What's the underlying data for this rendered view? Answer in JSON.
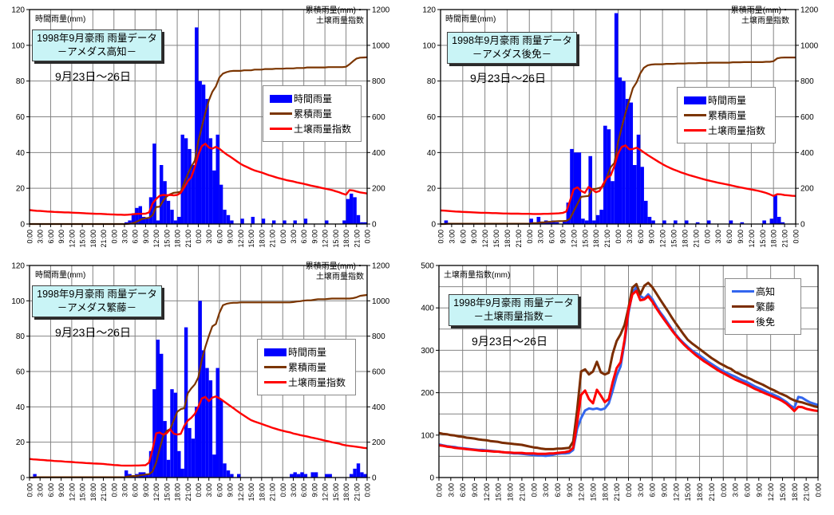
{
  "x_labels": [
    "0:00",
    "3:00",
    "6:00",
    "9:00",
    "12:00",
    "15:00",
    "18:00",
    "21:00",
    "0:00",
    "3:00",
    "6:00",
    "9:00",
    "12:00",
    "15:00",
    "18:00",
    "21:00",
    "0:00",
    "3:00",
    "6:00",
    "9:00",
    "12:00",
    "15:00",
    "18:00",
    "21:00",
    "0:00",
    "3:00",
    "6:00",
    "9:00",
    "12:00",
    "15:00",
    "18:00",
    "21:00",
    "0:00"
  ],
  "colors": {
    "bar": "#0000ff",
    "cumulative": "#7b3500",
    "soil": "#ff0000",
    "grid": "#848484",
    "border": "#000000",
    "kochi_line": "#3366ee",
    "shigeto_line": "#7b2d00",
    "gomen_line": "#ff0000",
    "title_box_bg": "#c9f4f6"
  },
  "soil_index_mm": {
    "高知": [
      78,
      76,
      74,
      73,
      72,
      70,
      69,
      68,
      67,
      66,
      65,
      65,
      64,
      63,
      62,
      61,
      60,
      59,
      58,
      57,
      57,
      56,
      55,
      54,
      53,
      52,
      52,
      51,
      52,
      54,
      56,
      57,
      57,
      58,
      65,
      115,
      140,
      158,
      163,
      161,
      163,
      160,
      163,
      175,
      205,
      240,
      262,
      318,
      388,
      436,
      449,
      428,
      422,
      432,
      421,
      405,
      390,
      378,
      364,
      350,
      337,
      326,
      317,
      308,
      300,
      294,
      288,
      281,
      274,
      268,
      262,
      256,
      251,
      246,
      242,
      238,
      233,
      229,
      225,
      220,
      215,
      211,
      207,
      202,
      198,
      194,
      190,
      184,
      178,
      170,
      164,
      190,
      188,
      182,
      177,
      174,
      171
    ],
    "後免": [
      76,
      75,
      73,
      72,
      70,
      69,
      68,
      67,
      66,
      65,
      64,
      63,
      63,
      62,
      61,
      61,
      60,
      59,
      59,
      58,
      58,
      58,
      57,
      57,
      57,
      56,
      56,
      56,
      57,
      57,
      58,
      59,
      60,
      62,
      70,
      130,
      195,
      205,
      185,
      175,
      207,
      193,
      178,
      185,
      225,
      258,
      272,
      325,
      395,
      432,
      440,
      418,
      420,
      427,
      415,
      400,
      386,
      373,
      360,
      347,
      335,
      324,
      314,
      305,
      297,
      289,
      282,
      275,
      269,
      263,
      257,
      251,
      246,
      241,
      236,
      231,
      227,
      223,
      219,
      214,
      209,
      205,
      201,
      197,
      193,
      189,
      185,
      180,
      174,
      166,
      157,
      167,
      166,
      162,
      160,
      158,
      157
    ],
    "繁藤": [
      105,
      103,
      102,
      100,
      99,
      97,
      96,
      94,
      93,
      92,
      90,
      89,
      88,
      86,
      85,
      84,
      82,
      81,
      80,
      79,
      78,
      77,
      75,
      73,
      71,
      70,
      68,
      67,
      67,
      67,
      68,
      68,
      69,
      70,
      85,
      160,
      250,
      255,
      243,
      250,
      273,
      248,
      243,
      247,
      292,
      322,
      338,
      360,
      400,
      448,
      456,
      432,
      452,
      459,
      449,
      435,
      420,
      406,
      392,
      377,
      363,
      350,
      337,
      325,
      317,
      310,
      303,
      296,
      289,
      282,
      276,
      270,
      265,
      260,
      256,
      249,
      245,
      240,
      236,
      232,
      227,
      223,
      219,
      214,
      209,
      205,
      200,
      196,
      192,
      186,
      182,
      179,
      177,
      174,
      171,
      168,
      166
    ]
  },
  "chart_data": [
    {
      "type": "combo",
      "station": "高知",
      "title_line1": "1998年9月豪雨 雨量データ",
      "title_line2": "－アメダス高知－",
      "subtitle": "9月23日〜26日",
      "left_axis_title": "時間雨量(mm)",
      "right_axis_title_line1": "累積雨量(mm)・",
      "right_axis_title_line2": "土壌雨量指数",
      "legend": [
        "時間雨量",
        "累積雨量",
        "土壌雨量指数"
      ],
      "axes": {
        "left": {
          "min": 0,
          "max": 120,
          "tick": 20
        },
        "right": {
          "min": 0,
          "max": 1200,
          "tick": 200
        }
      },
      "hourly_rain_mm": [
        0,
        0,
        0,
        0,
        0,
        0,
        0,
        0,
        0,
        0,
        0,
        0,
        0,
        0,
        0,
        0,
        0,
        0,
        0,
        0,
        0,
        0,
        0,
        0,
        0,
        0,
        0,
        1,
        2,
        6,
        9,
        10,
        4,
        3,
        15,
        45,
        2,
        33,
        24,
        13,
        8,
        2,
        4,
        50,
        48,
        42,
        33,
        110,
        80,
        78,
        70,
        48,
        30,
        50,
        22,
        8,
        5,
        2,
        0,
        0,
        3,
        0,
        0,
        4,
        0,
        0,
        3,
        0,
        0,
        2,
        0,
        0,
        2,
        0,
        0,
        2,
        0,
        0,
        3,
        0,
        0,
        0,
        0,
        0,
        2,
        0,
        0,
        0,
        0,
        2,
        14,
        17,
        15,
        5,
        1,
        1
      ]
    },
    {
      "type": "combo",
      "station": "後免",
      "title_line1": "1998年9月豪雨 雨量データ",
      "title_line2": "－アメダス後免－",
      "subtitle": "9月23日〜26日",
      "left_axis_title": "時間雨量(mm)",
      "right_axis_title_line1": "累積雨量(mm)・",
      "right_axis_title_line2": "土壌雨量指数",
      "legend": [
        "時間雨量",
        "累積雨量",
        "土壌雨量指数"
      ],
      "axes": {
        "left": {
          "min": 0,
          "max": 120,
          "tick": 20
        },
        "right": {
          "min": 0,
          "max": 1200,
          "tick": 200
        }
      },
      "hourly_rain_mm": [
        0,
        2,
        0,
        0,
        0,
        0,
        0,
        0,
        0,
        0,
        0,
        0,
        0,
        0,
        0,
        0,
        0,
        0,
        0,
        0,
        0,
        0,
        0,
        0,
        3,
        0,
        4,
        1,
        2,
        1,
        2,
        1,
        0,
        2,
        12,
        42,
        40,
        40,
        3,
        2,
        38,
        2,
        5,
        8,
        55,
        53,
        24,
        118,
        82,
        80,
        70,
        68,
        33,
        50,
        32,
        13,
        4,
        2,
        0,
        0,
        2,
        0,
        0,
        2,
        0,
        0,
        2,
        0,
        0,
        1,
        0,
        0,
        2,
        0,
        0,
        0,
        0,
        0,
        2,
        0,
        0,
        1,
        0,
        0,
        0,
        0,
        0,
        2,
        0,
        3,
        16,
        4,
        1,
        0,
        0,
        0
      ]
    },
    {
      "type": "combo",
      "station": "繁藤",
      "title_line1": "1998年9月豪雨 雨量データ",
      "title_line2": "－アメダス繁藤－",
      "subtitle": "9月23日〜26日",
      "left_axis_title": "時間雨量(mm)",
      "right_axis_title_line1": "累積雨量(mm)・",
      "right_axis_title_line2": "土壌雨量指数",
      "legend": [
        "時間雨量",
        "累積雨量",
        "土壌雨量指数"
      ],
      "axes": {
        "left": {
          "min": 0,
          "max": 120,
          "tick": 20
        },
        "right": {
          "min": 0,
          "max": 1200,
          "tick": 200
        }
      },
      "hourly_rain_mm": [
        0,
        2,
        0,
        0,
        0,
        0,
        0,
        0,
        0,
        0,
        0,
        0,
        0,
        0,
        0,
        0,
        0,
        0,
        0,
        0,
        0,
        0,
        0,
        0,
        0,
        0,
        0,
        4,
        2,
        1,
        2,
        3,
        3,
        2,
        15,
        50,
        78,
        70,
        32,
        10,
        50,
        48,
        15,
        5,
        85,
        28,
        22,
        40,
        100,
        72,
        62,
        55,
        13,
        62,
        44,
        8,
        4,
        2,
        0,
        2,
        0,
        0,
        0,
        0,
        0,
        0,
        0,
        0,
        0,
        0,
        0,
        0,
        0,
        0,
        2,
        3,
        2,
        3,
        2,
        0,
        3,
        3,
        0,
        0,
        2,
        2,
        0,
        0,
        0,
        0,
        0,
        2,
        5,
        8,
        3,
        2
      ]
    },
    {
      "type": "line",
      "title_line1": "1998年9月豪雨 雨量データ",
      "title_line2": "－土壌雨量指数－",
      "subtitle": "9月23日〜26日",
      "left_axis_title": "土壌雨量指数(mm)",
      "axes": {
        "left": {
          "min": 0,
          "max": 500,
          "tick": 100,
          "grid": 50
        }
      },
      "series": [
        {
          "name": "高知",
          "station": "高知",
          "color": "#3366ee"
        },
        {
          "name": "繁藤",
          "station": "繁藤",
          "color": "#7b2d00"
        },
        {
          "name": "後免",
          "station": "後免",
          "color": "#ff0000"
        }
      ]
    }
  ]
}
